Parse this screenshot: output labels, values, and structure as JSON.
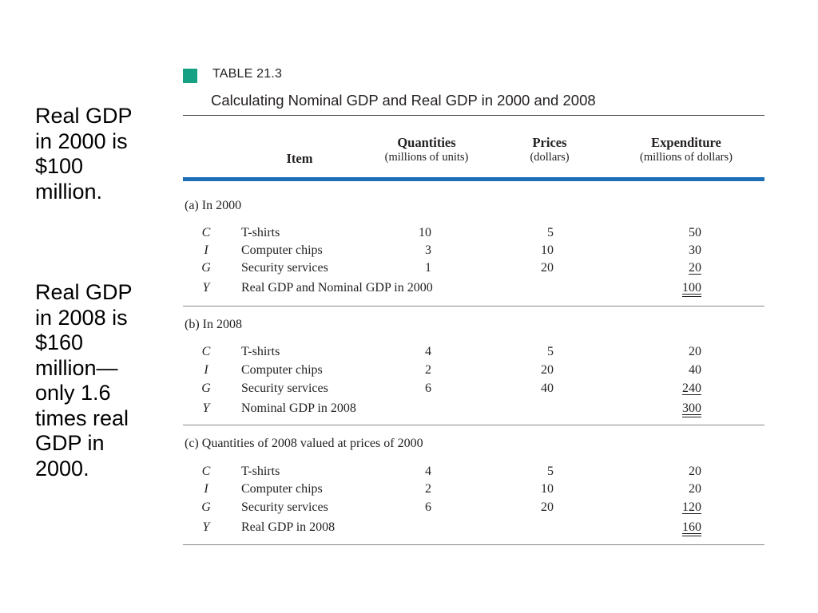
{
  "side_notes": [
    {
      "lines": [
        "Real GDP",
        "in 2000 is",
        "$100",
        "million."
      ]
    },
    {
      "lines": [
        "Real GDP",
        "in 2008 is",
        "$160",
        "million—",
        "only 1.6",
        "times real",
        "GDP in",
        "2000."
      ]
    }
  ],
  "table": {
    "label": "TABLE 21.3",
    "title": "Calculating Nominal GDP and Real GDP in 2000 and 2008",
    "marker_color": "#17a184",
    "rule_color": "#1d6fb8",
    "columns": {
      "item": "Item",
      "quantities": {
        "title": "Quantities",
        "unit": "(millions of units)"
      },
      "prices": {
        "title": "Prices",
        "unit": "(dollars)"
      },
      "expenditure": {
        "title": "Expenditure",
        "unit": "(millions of dollars)"
      }
    },
    "sections": [
      {
        "title": "(a) In 2000",
        "rows": [
          {
            "sym": "C",
            "item": "T-shirts",
            "qty": "10",
            "price": "5",
            "exp": "50"
          },
          {
            "sym": "I",
            "item": "Computer chips",
            "qty": "3",
            "price": "10",
            "exp": "30"
          },
          {
            "sym": "G",
            "item": "Security services",
            "qty": "1",
            "price": "20",
            "exp": "20"
          },
          {
            "sym": "Y",
            "item": "Real GDP and Nominal GDP in 2000",
            "qty": "",
            "price": "",
            "exp": "100"
          }
        ]
      },
      {
        "title": "(b) In 2008",
        "rows": [
          {
            "sym": "C",
            "item": "T-shirts",
            "qty": "4",
            "price": "5",
            "exp": "20"
          },
          {
            "sym": "I",
            "item": "Computer chips",
            "qty": "2",
            "price": "20",
            "exp": "40"
          },
          {
            "sym": "G",
            "item": "Security services",
            "qty": "6",
            "price": "40",
            "exp": "240"
          },
          {
            "sym": "Y",
            "item": "Nominal GDP in 2008",
            "qty": "",
            "price": "",
            "exp": "300"
          }
        ]
      },
      {
        "title": "(c) Quantities of 2008 valued at prices of 2000",
        "rows": [
          {
            "sym": "C",
            "item": "T-shirts",
            "qty": "4",
            "price": "5",
            "exp": "20"
          },
          {
            "sym": "I",
            "item": "Computer chips",
            "qty": "2",
            "price": "10",
            "exp": "20"
          },
          {
            "sym": "G",
            "item": "Security services",
            "qty": "6",
            "price": "20",
            "exp": "120"
          },
          {
            "sym": "Y",
            "item": "Real GDP in 2008",
            "qty": "",
            "price": "",
            "exp": "160"
          }
        ]
      }
    ]
  }
}
